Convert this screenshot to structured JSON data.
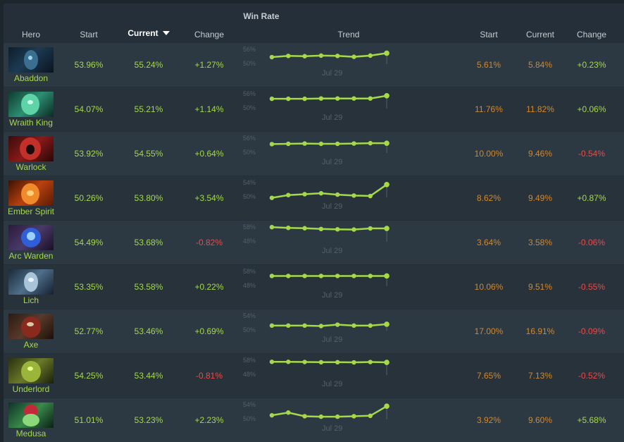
{
  "header": {
    "group_title": "Win Rate",
    "col_hero": "Hero",
    "col_start": "Start",
    "col_current": "Current",
    "col_change": "Change",
    "col_trend": "Trend",
    "col_start2": "Start",
    "col_current2": "Current",
    "col_change2": "Change"
  },
  "colors": {
    "green": "#a6d94a",
    "red": "#ea4b48",
    "orange": "#d3882c",
    "line": "#a6d94a"
  },
  "rows": [
    {
      "hero": "Abaddon",
      "icon": "abaddon-portrait",
      "start": "53.96%",
      "current": "55.24%",
      "change": "+1.27%",
      "change_sign": "pos",
      "trend_top": "56%",
      "trend_bottom": "50%",
      "trend_date": "Jul 29",
      "trend_ylim": [
        50,
        56
      ],
      "trend_values": [
        52.3,
        52.7,
        52.6,
        52.8,
        52.7,
        52.4,
        52.8,
        53.6
      ],
      "start2": "5.61%",
      "current2": "5.84%",
      "change2": "+0.23%",
      "change2_sign": "pos"
    },
    {
      "hero": "Wraith King",
      "icon": "wraith-king-portrait",
      "start": "54.07%",
      "current": "55.21%",
      "change": "+1.14%",
      "change_sign": "pos",
      "trend_top": "56%",
      "trend_bottom": "50%",
      "trend_date": "Jul 29",
      "trend_ylim": [
        50,
        56
      ],
      "trend_values": [
        53.2,
        53.2,
        53.2,
        53.3,
        53.3,
        53.3,
        53.3,
        54.2
      ],
      "start2": "11.76%",
      "current2": "11.82%",
      "change2": "+0.06%",
      "change2_sign": "pos"
    },
    {
      "hero": "Warlock",
      "icon": "warlock-portrait",
      "start": "53.92%",
      "current": "54.55%",
      "change": "+0.64%",
      "change_sign": "pos",
      "trend_top": "56%",
      "trend_bottom": "50%",
      "trend_date": "Jul 29",
      "trend_ylim": [
        50,
        56
      ],
      "trend_values": [
        52.9,
        53.0,
        53.1,
        53.0,
        53.0,
        53.1,
        53.2,
        53.2
      ],
      "start2": "10.00%",
      "current2": "9.46%",
      "change2": "-0.54%",
      "change2_sign": "neg"
    },
    {
      "hero": "Ember Spirit",
      "icon": "ember-spirit-portrait",
      "start": "50.26%",
      "current": "53.80%",
      "change": "+3.54%",
      "change_sign": "pos",
      "trend_top": "54%",
      "trend_bottom": "50%",
      "trend_date": "Jul 29",
      "trend_ylim": [
        50,
        54
      ],
      "trend_values": [
        49.9,
        50.5,
        50.7,
        50.9,
        50.6,
        50.4,
        50.3,
        52.8
      ],
      "start2": "8.62%",
      "current2": "9.49%",
      "change2": "+0.87%",
      "change2_sign": "pos"
    },
    {
      "hero": "Arc Warden",
      "icon": "arc-warden-portrait",
      "start": "54.49%",
      "current": "53.68%",
      "change": "-0.82%",
      "change_sign": "neg",
      "trend_top": "58%",
      "trend_bottom": "48%",
      "trend_date": "Jul 29",
      "trend_ylim": [
        48,
        58
      ],
      "trend_values": [
        56.0,
        55.6,
        55.4,
        55.0,
        54.8,
        54.7,
        55.3,
        55.3
      ],
      "start2": "3.64%",
      "current2": "3.58%",
      "change2": "-0.06%",
      "change2_sign": "neg"
    },
    {
      "hero": "Lich",
      "icon": "lich-portrait",
      "start": "53.35%",
      "current": "53.58%",
      "change": "+0.22%",
      "change_sign": "pos",
      "trend_top": "58%",
      "trend_bottom": "48%",
      "trend_date": "Jul 29",
      "trend_ylim": [
        48,
        58
      ],
      "trend_values": [
        53.6,
        53.6,
        53.6,
        53.6,
        53.6,
        53.6,
        53.6,
        53.6
      ],
      "start2": "10.06%",
      "current2": "9.51%",
      "change2": "-0.55%",
      "change2_sign": "neg"
    },
    {
      "hero": "Axe",
      "icon": "axe-portrait",
      "start": "52.77%",
      "current": "53.46%",
      "change": "+0.69%",
      "change_sign": "pos",
      "trend_top": "54%",
      "trend_bottom": "50%",
      "trend_date": "Jul 29",
      "trend_ylim": [
        50,
        54
      ],
      "trend_values": [
        51.1,
        51.1,
        51.1,
        51.0,
        51.3,
        51.1,
        51.1,
        51.4
      ],
      "start2": "17.00%",
      "current2": "16.91%",
      "change2": "-0.09%",
      "change2_sign": "neg"
    },
    {
      "hero": "Underlord",
      "icon": "underlord-portrait",
      "start": "54.25%",
      "current": "53.44%",
      "change": "-0.81%",
      "change_sign": "neg",
      "trend_top": "58%",
      "trend_bottom": "48%",
      "trend_date": "Jul 29",
      "trend_ylim": [
        48,
        58
      ],
      "trend_values": [
        55.2,
        55.2,
        55.1,
        55.0,
        55.0,
        54.9,
        55.1,
        54.9
      ],
      "start2": "7.65%",
      "current2": "7.13%",
      "change2": "-0.52%",
      "change2_sign": "neg"
    },
    {
      "hero": "Medusa",
      "icon": "medusa-portrait",
      "start": "51.01%",
      "current": "53.23%",
      "change": "+2.23%",
      "change_sign": "pos",
      "trend_top": "54%",
      "trend_bottom": "50%",
      "trend_date": "Jul 29",
      "trend_ylim": [
        50,
        54
      ],
      "trend_values": [
        50.9,
        51.5,
        50.7,
        50.6,
        50.6,
        50.7,
        50.8,
        52.9
      ],
      "start2": "3.92%",
      "current2": "9.60%",
      "change2": "+5.68%",
      "change2_sign": "pos"
    }
  ]
}
